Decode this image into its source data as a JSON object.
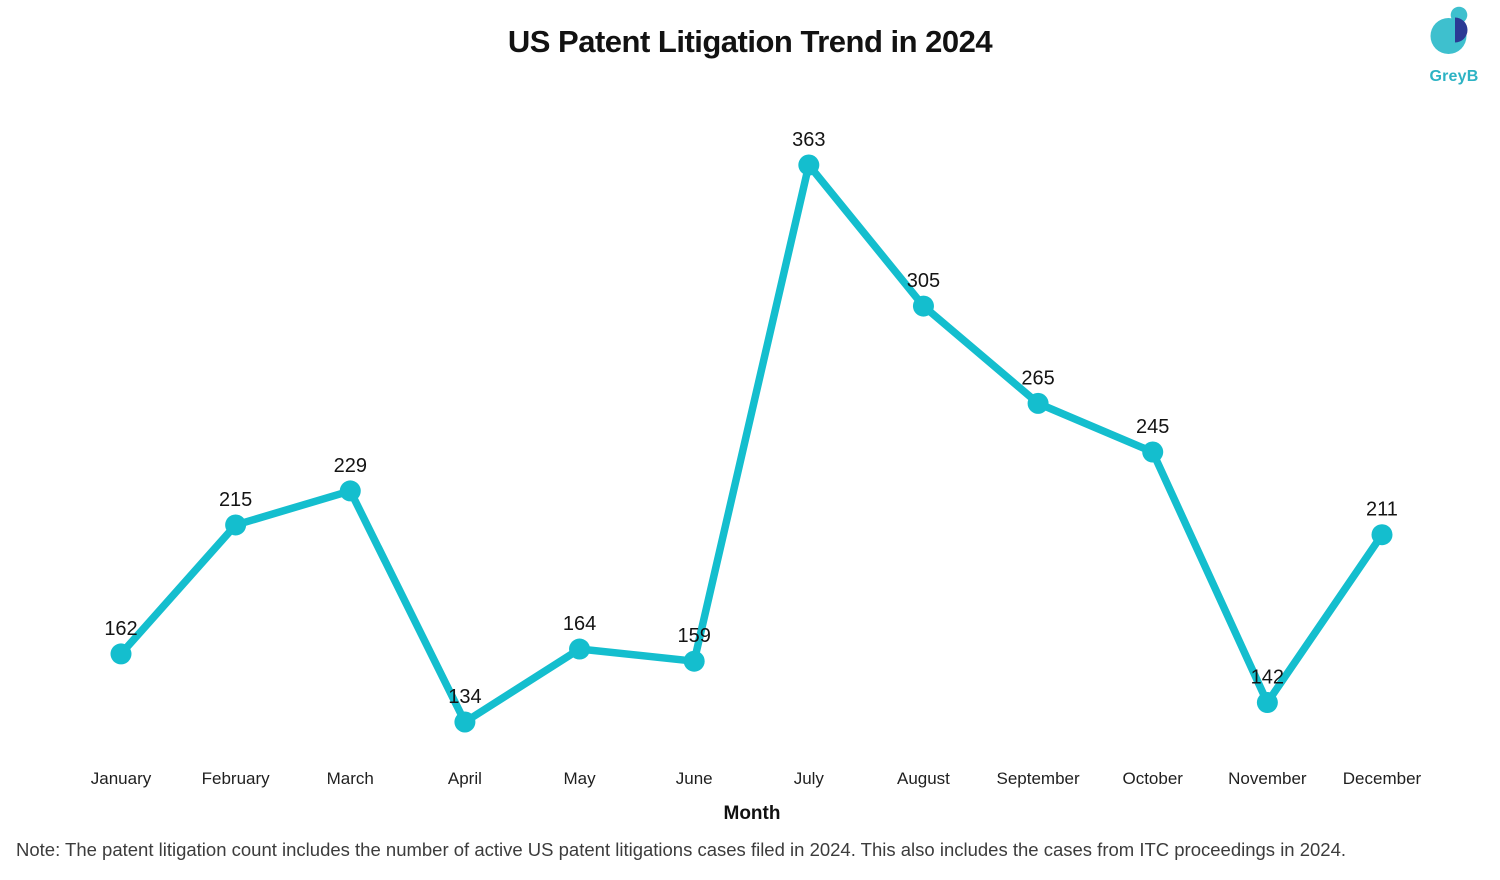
{
  "logo": {
    "text": "GreyB",
    "teal": "#3EC0CE",
    "navy": "#2B3A94",
    "text_color": "#2DB3C4"
  },
  "note": "Note: The patent litigation count includes the number of active US patent litigations cases filed in 2024. This also includes the cases from ITC proceedings in 2024.",
  "chart_data": {
    "type": "line",
    "title": "US Patent Litigation Trend in 2024",
    "xlabel": "Month",
    "ylabel": "",
    "categories": [
      "January",
      "February",
      "March",
      "April",
      "May",
      "June",
      "July",
      "August",
      "September",
      "October",
      "November",
      "December"
    ],
    "values": [
      162,
      215,
      229,
      134,
      164,
      159,
      363,
      305,
      265,
      245,
      142,
      211
    ],
    "line_color": "#14BECE",
    "point_color": "#14BECE",
    "data_labels": true,
    "grid": false,
    "legend": "none",
    "y_min_shown": 134,
    "y_max_shown": 363
  }
}
